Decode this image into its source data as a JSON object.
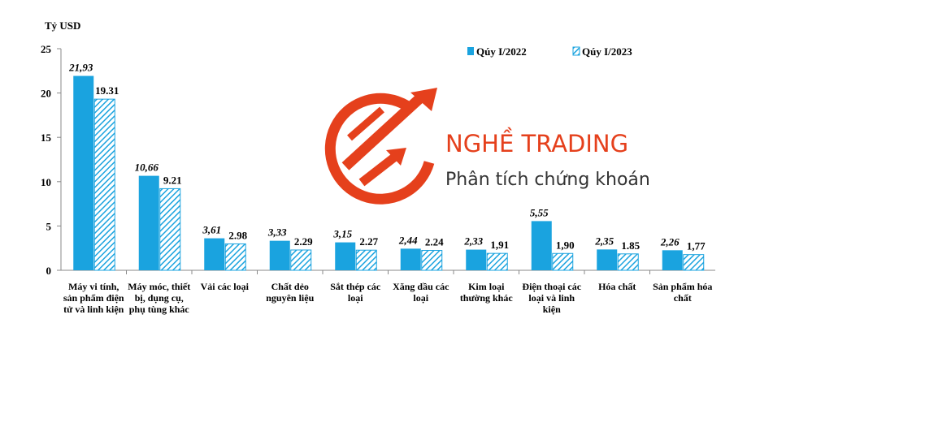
{
  "chart_data": {
    "type": "bar",
    "y_label": "Tỷ USD",
    "annotations": [
      "NGHỀ TRADING",
      "Phân tích chứng khoán"
    ],
    "categories": [
      "Máy vi tính, sản phẩm điện tử và linh kiện",
      "Máy móc, thiết bị, dụng cụ, phụ tùng khác",
      "Vải các loại",
      "Chất dẻo nguyên liệu",
      "Sắt thép các loại",
      "Xăng dầu các loại",
      "Kim loại thường khác",
      "Điện thoại các loại và linh kiện",
      "Hóa chất",
      "Sản phẩm hóa chất"
    ],
    "series": [
      {
        "name": "Qúy I/2022",
        "color": "#1aa3df",
        "hatch": false,
        "values": [
          21.93,
          10.66,
          3.61,
          3.33,
          3.15,
          2.44,
          2.33,
          5.55,
          2.35,
          2.26
        ],
        "value_labels": [
          "21,93",
          "10,66",
          "3,61",
          "3,33",
          "3,15",
          "2,44",
          "2,33",
          "5,55",
          "2,35",
          "2,26"
        ]
      },
      {
        "name": "Qúy I/2023",
        "color": "#1aa3df",
        "hatch": true,
        "values": [
          19.31,
          9.21,
          2.98,
          2.29,
          2.27,
          2.24,
          1.91,
          1.9,
          1.85,
          1.77
        ],
        "value_labels": [
          "19.31",
          "9.21",
          "2.98",
          "2.29",
          "2.27",
          "2.24",
          "1,91",
          "1,90",
          "1.85",
          "1,77"
        ]
      }
    ],
    "ylim": [
      0,
      25
    ],
    "yticks": [
      0,
      5,
      10,
      15,
      20,
      25
    ],
    "grid": false,
    "legend": "top"
  }
}
